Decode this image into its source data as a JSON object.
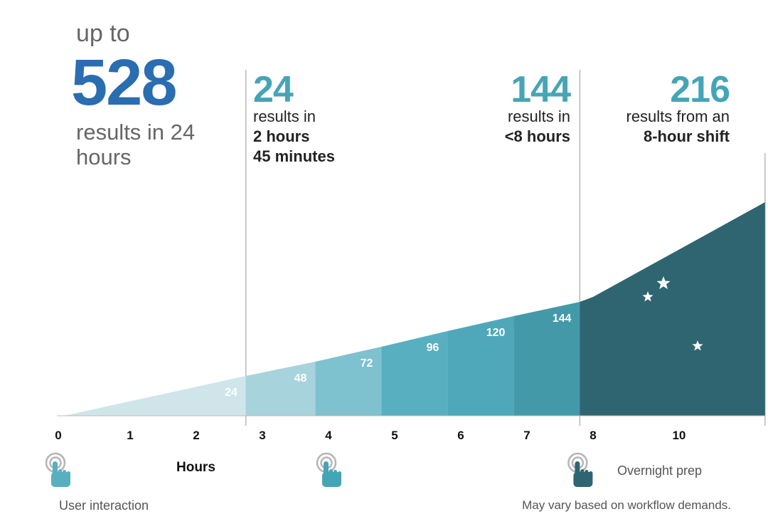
{
  "hero": {
    "prefix": "up to",
    "number": "528",
    "desc": "results in 24 hours"
  },
  "callouts": [
    {
      "number": "24",
      "line1": "results in",
      "line2": "2 hours",
      "line3": "45 minutes"
    },
    {
      "number": "144",
      "line1": "results in",
      "line2": "<8 hours"
    },
    {
      "number": "216",
      "line1": "results from an",
      "line2": "8-hour shift"
    }
  ],
  "xaxis_label": "Hours",
  "legend": {
    "user_interaction": "User interaction",
    "overnight": "Overnight prep"
  },
  "note": "May vary based on workflow demands.",
  "colors": {
    "hero": "#2a6db0",
    "accent": "#45a5b6",
    "night": "#2e6570",
    "bands": [
      "#cfe5ea",
      "#a7d3dc",
      "#7ec1cf",
      "#58afc0",
      "#4ea8ba",
      "#4499a9",
      "#3a8a99"
    ]
  },
  "chart_data": {
    "type": "area",
    "title": "",
    "xlabel": "Hours",
    "ylabel": "",
    "x_ticks": [
      "0",
      "1",
      "2",
      "3",
      "4",
      "5",
      "6",
      "7",
      "8",
      "10"
    ],
    "segments": [
      {
        "x0": 0,
        "x1": 2.75,
        "value": 24
      },
      {
        "x0": 2.75,
        "x1": 3.8,
        "value": 48
      },
      {
        "x0": 3.8,
        "x1": 4.8,
        "value": 72
      },
      {
        "x0": 4.8,
        "x1": 5.8,
        "value": 96
      },
      {
        "x0": 5.8,
        "x1": 6.8,
        "value": 120
      },
      {
        "x0": 6.8,
        "x1": 7.8,
        "value": 144
      },
      {
        "x0": 7.8,
        "x1": 10.6,
        "value": 216,
        "night": true
      }
    ],
    "curve": [
      [
        0,
        0
      ],
      [
        2.75,
        56
      ],
      [
        3.8,
        76
      ],
      [
        4.8,
        97
      ],
      [
        5.8,
        119
      ],
      [
        6.8,
        140
      ],
      [
        7.8,
        160
      ],
      [
        8.0,
        167
      ],
      [
        10.6,
        300
      ]
    ],
    "vlines": [
      2.75,
      7.8,
      10.6
    ],
    "interaction_hours": [
      0,
      4,
      7.8
    ]
  }
}
